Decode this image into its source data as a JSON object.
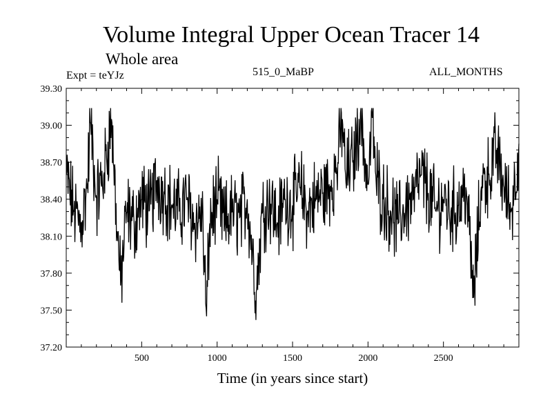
{
  "chart_data": {
    "type": "line",
    "title": "Volume Integral Upper Ocean Tracer 14",
    "subtitle": "Whole area",
    "experiment_label": "Expt = teYJz",
    "center_label": "515_0_MaBP",
    "right_label": "ALL_MONTHS",
    "xlabel": "Time (in years since start)",
    "ylabel": "",
    "xlim": [
      0,
      3000
    ],
    "ylim": [
      37.2,
      39.3
    ],
    "xticks": [
      500,
      1000,
      1500,
      2000,
      2500
    ],
    "xtick_labels": [
      "500",
      "1000",
      "1500",
      "2000",
      "2500"
    ],
    "yticks": [
      37.2,
      37.5,
      37.8,
      38.1,
      38.4,
      38.7,
      39.0,
      39.3
    ],
    "ytick_labels": [
      "37.20",
      "37.50",
      "37.80",
      "38.10",
      "38.40",
      "38.70",
      "39.00",
      "39.30"
    ],
    "series": [
      {
        "name": "Volume Integral Upper Ocean Tracer 14",
        "x": [
          0,
          50,
          100,
          140,
          160,
          200,
          250,
          300,
          340,
          360,
          400,
          450,
          500,
          550,
          600,
          650,
          700,
          750,
          800,
          850,
          900,
          930,
          950,
          1000,
          1050,
          1100,
          1150,
          1200,
          1260,
          1300,
          1350,
          1400,
          1450,
          1500,
          1550,
          1600,
          1650,
          1700,
          1750,
          1800,
          1830,
          1850,
          1900,
          1950,
          2000,
          2030,
          2050,
          2100,
          2150,
          2200,
          2250,
          2300,
          2350,
          2400,
          2450,
          2500,
          2550,
          2600,
          2650,
          2700,
          2750,
          2800,
          2850,
          2900,
          2950,
          3000
        ],
        "values": [
          38.6,
          38.3,
          38.2,
          38.5,
          39.05,
          38.4,
          38.6,
          39.05,
          38.1,
          37.7,
          38.3,
          38.2,
          38.4,
          38.3,
          38.55,
          38.45,
          38.35,
          38.3,
          38.4,
          38.2,
          38.3,
          37.45,
          38.2,
          38.4,
          38.2,
          38.3,
          38.25,
          38.4,
          37.65,
          38.3,
          38.4,
          38.2,
          38.4,
          38.35,
          38.5,
          38.3,
          38.4,
          38.45,
          38.5,
          38.7,
          39.05,
          38.6,
          38.7,
          39.1,
          38.5,
          39.1,
          38.6,
          38.4,
          38.3,
          38.2,
          38.35,
          38.4,
          38.6,
          38.45,
          38.3,
          38.4,
          38.3,
          38.35,
          38.5,
          37.6,
          38.5,
          38.6,
          38.8,
          38.5,
          38.3,
          38.85
        ]
      }
    ]
  }
}
